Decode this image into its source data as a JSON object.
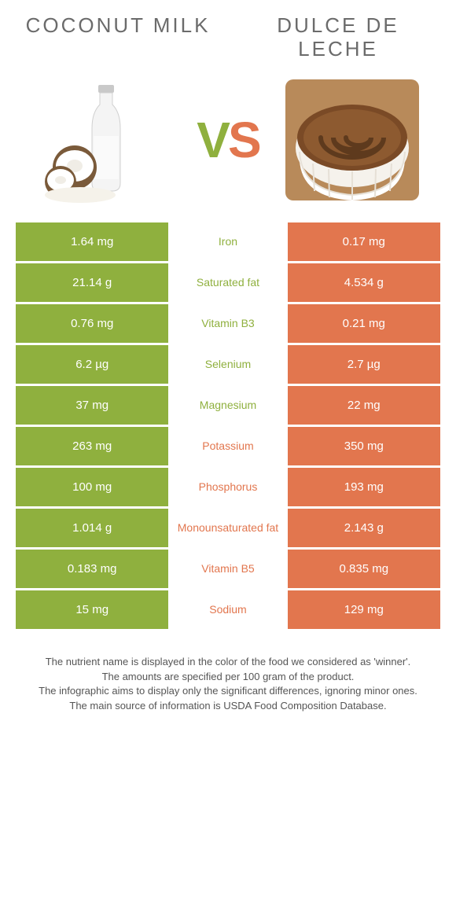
{
  "colors": {
    "left_food": "#8fb03e",
    "right_food": "#e2764e",
    "mid_bg": "#ffffff",
    "title_text": "#6b6b6b",
    "footer_text": "#555555"
  },
  "header": {
    "left_title": "Coconut milk",
    "right_title": "Dulce de leche"
  },
  "vs": {
    "v": "V",
    "s": "S"
  },
  "rows": [
    {
      "left": "1.64 mg",
      "label": "Iron",
      "right": "0.17 mg",
      "winner": "left"
    },
    {
      "left": "21.14 g",
      "label": "Saturated fat",
      "right": "4.534 g",
      "winner": "left"
    },
    {
      "left": "0.76 mg",
      "label": "Vitamin B3",
      "right": "0.21 mg",
      "winner": "left"
    },
    {
      "left": "6.2 µg",
      "label": "Selenium",
      "right": "2.7 µg",
      "winner": "left"
    },
    {
      "left": "37 mg",
      "label": "Magnesium",
      "right": "22 mg",
      "winner": "left"
    },
    {
      "left": "263 mg",
      "label": "Potassium",
      "right": "350 mg",
      "winner": "right"
    },
    {
      "left": "100 mg",
      "label": "Phosphorus",
      "right": "193 mg",
      "winner": "right"
    },
    {
      "left": "1.014 g",
      "label": "Monounsaturated fat",
      "right": "2.143 g",
      "winner": "right"
    },
    {
      "left": "0.183 mg",
      "label": "Vitamin B5",
      "right": "0.835 mg",
      "winner": "right"
    },
    {
      "left": "15 mg",
      "label": "Sodium",
      "right": "129 mg",
      "winner": "right"
    }
  ],
  "footer": {
    "line1": "The nutrient name is displayed in the color of the food we considered as 'winner'.",
    "line2": "The amounts are specified per 100 gram of the product.",
    "line3": "The infographic aims to display only the significant differences, ignoring minor ones.",
    "line4": "The main source of information is USDA Food Composition Database."
  }
}
